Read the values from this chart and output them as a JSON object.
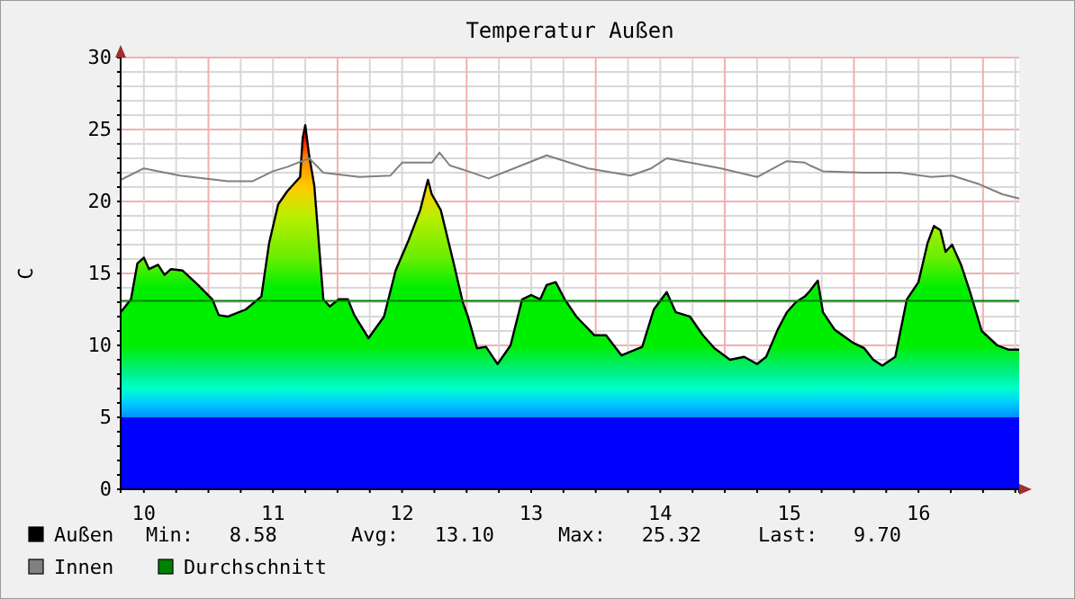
{
  "chart_data": {
    "type": "area",
    "title": "Temperatur Außen",
    "ylabel": "C",
    "xlim": [
      10.32,
      17.28
    ],
    "ylim": [
      0,
      30
    ],
    "xticks": [
      {
        "value": 10.5,
        "label": "10"
      },
      {
        "value": 10.75,
        "label": null
      },
      {
        "value": 11,
        "label": null
      },
      {
        "value": 11.25,
        "label": null
      },
      {
        "value": 11.5,
        "label": "11"
      },
      {
        "value": 11.75,
        "label": null
      },
      {
        "value": 12,
        "label": null
      },
      {
        "value": 12.25,
        "label": null
      },
      {
        "value": 12.5,
        "label": "12"
      },
      {
        "value": 12.75,
        "label": null
      },
      {
        "value": 13,
        "label": null
      },
      {
        "value": 13.25,
        "label": null
      },
      {
        "value": 13.5,
        "label": "13"
      },
      {
        "value": 13.75,
        "label": null
      },
      {
        "value": 14,
        "label": null
      },
      {
        "value": 14.25,
        "label": null
      },
      {
        "value": 14.5,
        "label": "14"
      },
      {
        "value": 14.75,
        "label": null
      },
      {
        "value": 15,
        "label": null
      },
      {
        "value": 15.25,
        "label": null
      },
      {
        "value": 15.5,
        "label": "15"
      },
      {
        "value": 15.75,
        "label": null
      },
      {
        "value": 16,
        "label": null
      },
      {
        "value": 16.25,
        "label": null
      },
      {
        "value": 16.5,
        "label": "16"
      },
      {
        "value": 16.75,
        "label": null
      },
      {
        "value": 17,
        "label": null
      },
      {
        "value": 17.25,
        "label": null
      }
    ],
    "yticks": [
      0,
      {
        "value": 1,
        "label": null
      },
      {
        "value": 2,
        "label": null
      },
      {
        "value": 3,
        "label": null
      },
      {
        "value": 4,
        "label": null
      },
      5,
      {
        "value": 6,
        "label": null
      },
      {
        "value": 7,
        "label": null
      },
      {
        "value": 8,
        "label": null
      },
      {
        "value": 9,
        "label": null
      },
      10,
      {
        "value": 11,
        "label": null
      },
      {
        "value": 12,
        "label": null
      },
      {
        "value": 13,
        "label": null
      },
      {
        "value": 14,
        "label": null
      },
      15,
      {
        "value": 16,
        "label": null
      },
      {
        "value": 17,
        "label": null
      },
      {
        "value": 18,
        "label": null
      },
      {
        "value": 19,
        "label": null
      },
      20,
      {
        "value": 21,
        "label": null
      },
      {
        "value": 22,
        "label": null
      },
      {
        "value": 23,
        "label": null
      },
      {
        "value": 24,
        "label": null
      },
      25,
      {
        "value": 26,
        "label": null
      },
      {
        "value": 27,
        "label": null
      },
      {
        "value": 28,
        "label": null
      },
      {
        "value": 29,
        "label": null
      },
      30
    ],
    "grid": true,
    "legend": "bottom",
    "series": [
      {
        "name": "Außen",
        "color": "#000000",
        "x": [
          10.32,
          10.4,
          10.45,
          10.5,
          10.54,
          10.61,
          10.66,
          10.71,
          10.8,
          10.92,
          11.03,
          11.08,
          11.15,
          11.29,
          11.41,
          11.47,
          11.54,
          11.61,
          11.71,
          11.73,
          11.75,
          11.78,
          11.82,
          11.89,
          11.94,
          12.01,
          12.08,
          12.13,
          12.24,
          12.36,
          12.45,
          12.55,
          12.64,
          12.7,
          12.73,
          12.8,
          12.9,
          12.97,
          13.01,
          13.08,
          13.15,
          13.24,
          13.34,
          13.43,
          13.5,
          13.57,
          13.62,
          13.69,
          13.76,
          13.85,
          13.99,
          14.08,
          14.2,
          14.36,
          14.45,
          14.55,
          14.62,
          14.73,
          14.83,
          14.92,
          15.04,
          15.15,
          15.25,
          15.32,
          15.41,
          15.48,
          15.55,
          15.62,
          15.66,
          15.72,
          15.76,
          15.85,
          15.99,
          16.08,
          16.15,
          16.22,
          16.32,
          16.41,
          16.5,
          16.57,
          16.62,
          16.67,
          16.71,
          16.76,
          16.83,
          16.9,
          16.99,
          17.11,
          17.2,
          17.28
        ],
        "values": [
          12.3,
          13.2,
          15.7,
          16.1,
          15.3,
          15.6,
          14.9,
          15.3,
          15.2,
          14.2,
          13.2,
          12.1,
          12.0,
          12.5,
          13.4,
          17.1,
          19.8,
          20.7,
          21.7,
          24.4,
          25.3,
          23.2,
          21.1,
          13.2,
          12.7,
          13.2,
          13.2,
          12.1,
          10.5,
          12.0,
          15.2,
          17.3,
          19.4,
          21.5,
          20.5,
          19.4,
          15.7,
          13.0,
          12.0,
          9.8,
          9.9,
          8.7,
          10.0,
          13.2,
          13.5,
          13.2,
          14.2,
          14.4,
          13.2,
          12.0,
          10.7,
          10.7,
          9.3,
          9.9,
          12.5,
          13.7,
          12.3,
          12.0,
          10.7,
          9.8,
          9.0,
          9.2,
          8.7,
          9.2,
          11.1,
          12.3,
          13.0,
          13.4,
          13.8,
          14.5,
          12.3,
          11.1,
          10.2,
          9.8,
          9.0,
          8.6,
          9.2,
          13.2,
          14.4,
          17.1,
          18.3,
          18.0,
          16.5,
          17.0,
          15.6,
          13.7,
          11.0,
          10.0,
          9.7,
          9.7
        ]
      },
      {
        "name": "Innen",
        "type": "line",
        "color": "#808080",
        "x": [
          10.32,
          10.5,
          10.78,
          11.15,
          11.34,
          11.5,
          11.61,
          11.78,
          11.89,
          12.17,
          12.41,
          12.5,
          12.73,
          12.79,
          12.87,
          13.01,
          13.17,
          13.48,
          13.62,
          13.94,
          14.27,
          14.43,
          14.55,
          14.73,
          14.97,
          15.25,
          15.48,
          15.62,
          15.66,
          15.76,
          16.08,
          16.36,
          16.6,
          16.76,
          16.97,
          17.15,
          17.28
        ],
        "values": [
          21.5,
          22.3,
          21.8,
          21.4,
          21.4,
          22.1,
          22.4,
          23.0,
          22.0,
          21.7,
          21.8,
          22.7,
          22.7,
          23.4,
          22.5,
          22.1,
          21.6,
          22.7,
          23.2,
          22.3,
          21.8,
          22.3,
          23.0,
          22.7,
          22.3,
          21.7,
          22.8,
          22.7,
          22.5,
          22.1,
          22.0,
          22.0,
          21.7,
          21.8,
          21.2,
          20.5,
          20.2
        ]
      },
      {
        "name": "Durchschnitt",
        "type": "line",
        "color": "#008000",
        "x": [
          10.32,
          17.28
        ],
        "values": [
          13.1,
          13.1
        ]
      }
    ],
    "annotations": [
      "Min:   8.58",
      "Avg:   13.10",
      "Max:   25.32",
      "Last:   9.70"
    ]
  }
}
